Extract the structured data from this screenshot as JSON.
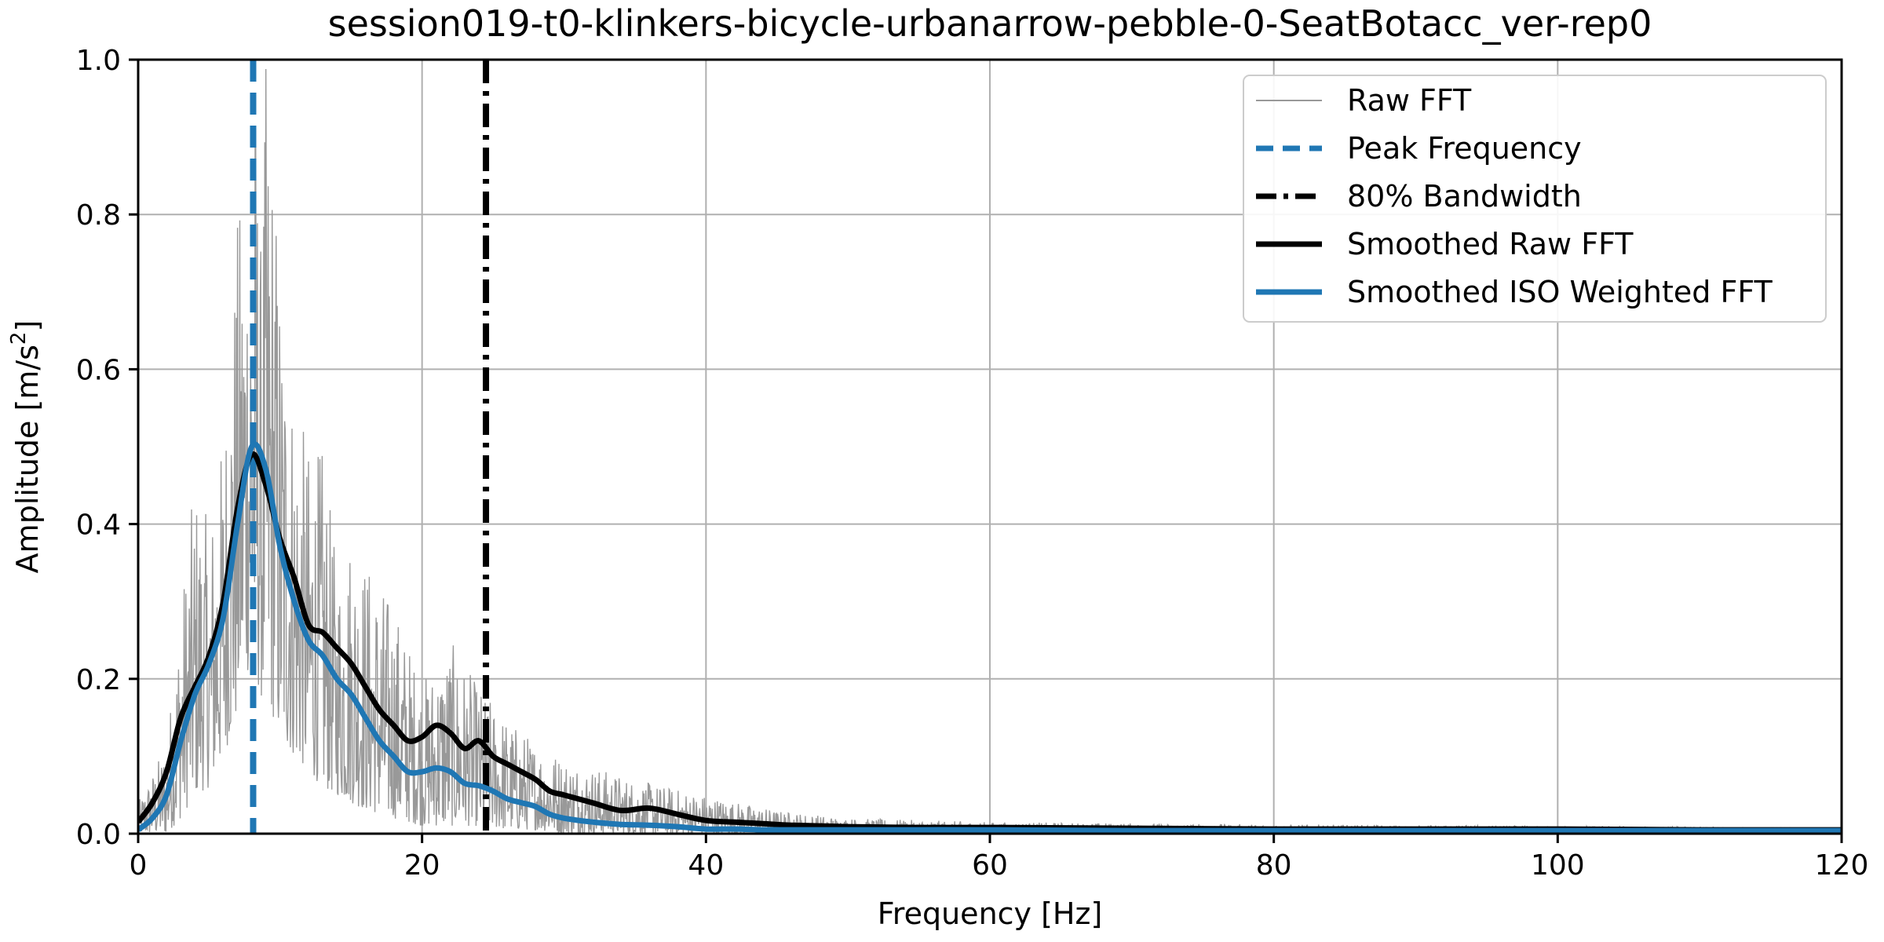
{
  "chart_data": {
    "type": "line",
    "title": "session019-t0-klinkers-bicycle-urbanarrow-pebble-0-SeatBotacc_ver-rep0",
    "xlabel": "Frequency [Hz]",
    "ylabel_prefix": "Amplitude [m/s",
    "ylabel_exp": "2",
    "ylabel_suffix": "]",
    "xlim": [
      0,
      120
    ],
    "ylim": [
      0,
      1.0
    ],
    "x_ticks": [
      0,
      20,
      40,
      60,
      80,
      100,
      120
    ],
    "y_ticks": [
      0.0,
      0.2,
      0.4,
      0.6,
      0.8,
      1.0
    ],
    "x_tick_labels": [
      "0",
      "20",
      "40",
      "60",
      "80",
      "100",
      "120"
    ],
    "y_tick_labels": [
      "0.0",
      "0.2",
      "0.4",
      "0.6",
      "0.8",
      "1.0"
    ],
    "grid": true,
    "legend_position": "top-right",
    "legend": [
      {
        "label": "Raw FFT",
        "style": "thin-gray"
      },
      {
        "label": "Peak Frequency",
        "style": "dashed-blue"
      },
      {
        "label": "80% Bandwidth",
        "style": "dashdot-black"
      },
      {
        "label": "Smoothed Raw FFT",
        "style": "solid-black"
      },
      {
        "label": "Smoothed ISO Weighted FFT",
        "style": "solid-blue"
      }
    ],
    "colors": {
      "raw": "#999999",
      "blue": "#1f77b4",
      "black": "#000000",
      "grid": "#b0b0b0"
    },
    "peak_frequency": 8.1,
    "bandwidth_80": 24.5,
    "series": [
      {
        "name": "Smoothed Raw FFT",
        "x": [
          0,
          1,
          2,
          3,
          4,
          5,
          6,
          7,
          8,
          9,
          10,
          11,
          12,
          13,
          14,
          15,
          16,
          17,
          18,
          19,
          20,
          21,
          22,
          23,
          24,
          25,
          26,
          27,
          28,
          29,
          30,
          32,
          34,
          36,
          38,
          40,
          42,
          44,
          46,
          50,
          55,
          60,
          70,
          80,
          90,
          100,
          110,
          120
        ],
        "values": [
          0.015,
          0.04,
          0.08,
          0.15,
          0.19,
          0.23,
          0.3,
          0.42,
          0.49,
          0.45,
          0.38,
          0.33,
          0.27,
          0.26,
          0.24,
          0.22,
          0.19,
          0.16,
          0.14,
          0.12,
          0.125,
          0.14,
          0.13,
          0.11,
          0.12,
          0.1,
          0.09,
          0.08,
          0.07,
          0.055,
          0.05,
          0.04,
          0.03,
          0.033,
          0.025,
          0.017,
          0.015,
          0.013,
          0.011,
          0.009,
          0.008,
          0.008,
          0.007,
          0.006,
          0.006,
          0.006,
          0.005,
          0.005
        ]
      },
      {
        "name": "Smoothed ISO Weighted FFT",
        "x": [
          0,
          1,
          2,
          3,
          4,
          5,
          6,
          7,
          8,
          9,
          10,
          11,
          12,
          13,
          14,
          15,
          16,
          17,
          18,
          19,
          20,
          21,
          22,
          23,
          24,
          25,
          26,
          27,
          28,
          29,
          30,
          32,
          34,
          36,
          38,
          40,
          42,
          44,
          46,
          50,
          55,
          60,
          70,
          80,
          90,
          100,
          110,
          120
        ],
        "values": [
          0.005,
          0.02,
          0.05,
          0.12,
          0.18,
          0.22,
          0.28,
          0.4,
          0.5,
          0.47,
          0.37,
          0.3,
          0.25,
          0.23,
          0.2,
          0.18,
          0.15,
          0.12,
          0.1,
          0.08,
          0.08,
          0.085,
          0.08,
          0.065,
          0.062,
          0.055,
          0.045,
          0.04,
          0.035,
          0.025,
          0.02,
          0.015,
          0.012,
          0.011,
          0.009,
          0.006,
          0.006,
          0.005,
          0.005,
          0.005,
          0.005,
          0.005,
          0.004,
          0.004,
          0.004,
          0.004,
          0.004,
          0.004
        ]
      },
      {
        "name": "Raw FFT",
        "envelope_x": [
          0,
          2,
          3,
          4,
          5,
          6,
          7,
          7.5,
          8,
          8.3,
          8.6,
          9,
          9.5,
          10,
          11,
          12,
          13,
          14,
          15,
          16,
          18,
          20,
          22,
          24,
          26,
          28,
          30,
          35,
          40,
          45,
          50,
          60,
          80,
          100,
          120
        ],
        "envelope_max": [
          0.04,
          0.12,
          0.3,
          0.46,
          0.4,
          0.52,
          0.8,
          0.86,
          0.9,
          1.0,
          0.75,
          1.0,
          0.9,
          0.73,
          0.57,
          0.5,
          0.5,
          0.35,
          0.4,
          0.36,
          0.3,
          0.2,
          0.25,
          0.19,
          0.15,
          0.12,
          0.1,
          0.07,
          0.05,
          0.03,
          0.02,
          0.015,
          0.012,
          0.01,
          0.008
        ],
        "envelope_min": [
          0.0,
          0.0,
          0.02,
          0.05,
          0.06,
          0.1,
          0.15,
          0.2,
          0.22,
          0.2,
          0.18,
          0.16,
          0.15,
          0.12,
          0.1,
          0.08,
          0.06,
          0.05,
          0.04,
          0.03,
          0.02,
          0.01,
          0.01,
          0.01,
          0.005,
          0.005,
          0.0,
          0.0,
          0.0,
          0.0,
          0.0,
          0.0,
          0.0,
          0.0,
          0.0
        ]
      }
    ]
  }
}
